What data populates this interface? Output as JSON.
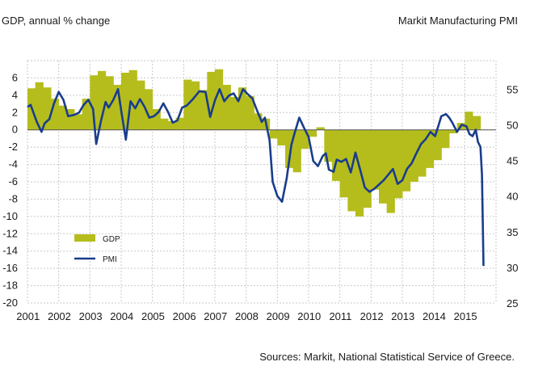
{
  "chart_data": {
    "type": "area+line",
    "xlabel": "",
    "y_left_label": "GDP, annual % change",
    "y_right_label": "Markit Manufacturing PMI",
    "source": "Sources: Markit, National Statistical Service of Greece.",
    "ylim_left": [
      -20,
      8
    ],
    "ylim_right": [
      25,
      59
    ],
    "y_left_ticks": [
      6,
      4,
      2,
      0,
      -2,
      -4,
      -6,
      -8,
      -10,
      -12,
      -14,
      -16,
      -18,
      -20
    ],
    "y_right_ticks": [
      55,
      50,
      45,
      40,
      35,
      30,
      25
    ],
    "x_ticks": [
      "2001",
      "2002",
      "2003",
      "2004",
      "2005",
      "2006",
      "2007",
      "2008",
      "2009",
      "2010",
      "2011",
      "2012",
      "2013",
      "2014",
      "2015"
    ],
    "xlim": [
      2001.0,
      2016.0
    ],
    "grid": true,
    "legend": [
      {
        "name": "GDP",
        "color": "#b5bd1c",
        "kind": "area"
      },
      {
        "name": "PMI",
        "color": "#1a3d8c",
        "kind": "line"
      }
    ],
    "series": [
      {
        "name": "GDP",
        "axis": "left",
        "x": [
          2001.0,
          2001.25,
          2001.5,
          2001.75,
          2002.0,
          2002.25,
          2002.5,
          2002.75,
          2003.0,
          2003.25,
          2003.5,
          2003.75,
          2004.0,
          2004.25,
          2004.5,
          2004.75,
          2005.0,
          2005.25,
          2005.5,
          2005.75,
          2006.0,
          2006.25,
          2006.5,
          2006.75,
          2007.0,
          2007.25,
          2007.5,
          2007.75,
          2008.0,
          2008.25,
          2008.5,
          2008.75,
          2009.0,
          2009.25,
          2009.5,
          2009.75,
          2010.0,
          2010.25,
          2010.5,
          2010.75,
          2011.0,
          2011.25,
          2011.5,
          2011.75,
          2012.0,
          2012.25,
          2012.5,
          2012.75,
          2013.0,
          2013.25,
          2013.5,
          2013.75,
          2014.0,
          2014.25,
          2014.5,
          2014.75,
          2015.0,
          2015.25
        ],
        "values": [
          4.8,
          5.5,
          4.9,
          3.6,
          2.8,
          2.4,
          1.8,
          3.6,
          6.3,
          6.8,
          6.2,
          5.2,
          6.6,
          6.9,
          5.7,
          4.7,
          2.4,
          1.3,
          1.0,
          1.4,
          5.8,
          5.6,
          4.6,
          6.7,
          7.0,
          5.2,
          3.8,
          4.9,
          3.9,
          1.9,
          1.3,
          -1.0,
          -1.8,
          -4.4,
          -4.9,
          -2.2,
          -0.8,
          0.3,
          -3.7,
          -5.9,
          -7.8,
          -9.4,
          -10.0,
          -9.0,
          -6.9,
          -8.5,
          -9.6,
          -7.9,
          -7.1,
          -6.0,
          -5.4,
          -4.4,
          -3.5,
          -2.1,
          -0.4,
          0.8,
          2.1,
          1.6
        ]
      },
      {
        "name": "PMI",
        "axis": "right",
        "x": [
          2001.0,
          2001.1,
          2001.2,
          2001.3,
          2001.45,
          2001.55,
          2001.7,
          2001.85,
          2002.0,
          2002.15,
          2002.3,
          2002.5,
          2002.65,
          2002.8,
          2002.95,
          2003.1,
          2003.2,
          2003.35,
          2003.5,
          2003.6,
          2003.75,
          2003.9,
          2004.0,
          2004.15,
          2004.3,
          2004.45,
          2004.6,
          2004.75,
          2004.9,
          2005.05,
          2005.2,
          2005.35,
          2005.5,
          2005.65,
          2005.8,
          2005.95,
          2006.1,
          2006.3,
          2006.5,
          2006.7,
          2006.85,
          2007.0,
          2007.15,
          2007.3,
          2007.45,
          2007.6,
          2007.75,
          2007.9,
          2008.05,
          2008.2,
          2008.35,
          2008.5,
          2008.6,
          2008.75,
          2008.85,
          2009.0,
          2009.15,
          2009.3,
          2009.45,
          2009.55,
          2009.7,
          2009.85,
          2010.0,
          2010.15,
          2010.3,
          2010.45,
          2010.55,
          2010.65,
          2010.8,
          2010.9,
          2011.05,
          2011.2,
          2011.35,
          2011.5,
          2011.65,
          2011.8,
          2011.95,
          2012.1,
          2012.25,
          2012.4,
          2012.55,
          2012.7,
          2012.85,
          2013.0,
          2013.15,
          2013.3,
          2013.45,
          2013.6,
          2013.75,
          2013.9,
          2014.05,
          2014.15,
          2014.25,
          2014.4,
          2014.5,
          2014.6,
          2014.75,
          2014.9,
          2015.05,
          2015.15,
          2015.25,
          2015.35,
          2015.42,
          2015.5,
          2015.55,
          2015.6
        ],
        "values": [
          52.5,
          52.8,
          51.6,
          50.4,
          49.0,
          50.2,
          50.8,
          53.0,
          54.6,
          53.5,
          51.2,
          51.4,
          51.7,
          52.8,
          53.5,
          52.2,
          47.3,
          50.5,
          53.2,
          52.4,
          53.5,
          55.0,
          52.0,
          47.9,
          53.3,
          52.3,
          53.6,
          52.5,
          51.0,
          51.2,
          51.8,
          53.0,
          51.8,
          50.3,
          50.6,
          52.4,
          52.7,
          53.6,
          54.7,
          54.6,
          51.1,
          53.4,
          55.0,
          53.3,
          54.1,
          54.4,
          53.3,
          55.0,
          54.3,
          53.7,
          52.0,
          50.4,
          51.0,
          47.8,
          42.0,
          40.0,
          39.2,
          42.5,
          47.2,
          48.8,
          51.0,
          49.6,
          48.3,
          44.9,
          44.2,
          45.6,
          46.0,
          43.7,
          43.4,
          45.1,
          44.8,
          45.2,
          43.3,
          46.1,
          43.7,
          41.2,
          40.6,
          41.0,
          41.6,
          42.2,
          43.0,
          43.8,
          41.7,
          42.2,
          43.8,
          44.6,
          46.0,
          47.3,
          48.0,
          49.0,
          48.4,
          49.8,
          51.2,
          51.5,
          51.0,
          50.3,
          49.0,
          50.0,
          49.8,
          48.7,
          48.4,
          49.3,
          47.6,
          46.9,
          43.0,
          30.2
        ]
      }
    ]
  }
}
